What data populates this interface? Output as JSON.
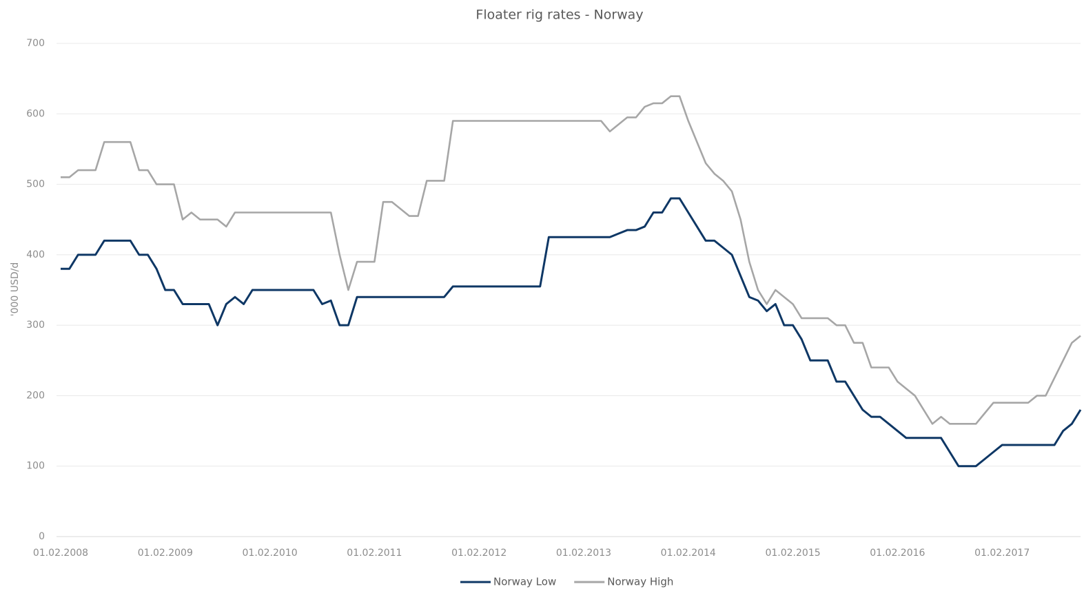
{
  "chart_data": {
    "type": "line",
    "title": "Floater rig rates - Norway",
    "y_label": "'000 USD/d",
    "categories": [
      "01.02.2008",
      null,
      null,
      null,
      null,
      null,
      null,
      null,
      null,
      null,
      null,
      null,
      "01.02.2009",
      null,
      null,
      null,
      null,
      null,
      null,
      null,
      null,
      null,
      null,
      null,
      "01.02.2010",
      null,
      null,
      null,
      null,
      null,
      null,
      null,
      null,
      null,
      null,
      null,
      "01.02.2011",
      null,
      null,
      null,
      null,
      null,
      null,
      null,
      null,
      null,
      null,
      null,
      "01.02.2012",
      null,
      null,
      null,
      null,
      null,
      null,
      null,
      null,
      null,
      null,
      null,
      "01.02.2013",
      null,
      null,
      null,
      null,
      null,
      null,
      null,
      null,
      null,
      null,
      null,
      "01.02.2014",
      null,
      null,
      null,
      null,
      null,
      null,
      null,
      null,
      null,
      null,
      null,
      "01.02.2015",
      null,
      null,
      null,
      null,
      null,
      null,
      null,
      null,
      null,
      null,
      null,
      "01.02.2016",
      null,
      null,
      null,
      null,
      null,
      null,
      null,
      null,
      null,
      null,
      null,
      "01.02.2017",
      null,
      null,
      null,
      null,
      null,
      null,
      null,
      null,
      null
    ],
    "series": [
      {
        "name": "Norway Low",
        "color": "#0e3765",
        "values": [
          380,
          380,
          400,
          400,
          400,
          420,
          420,
          420,
          420,
          400,
          400,
          380,
          350,
          350,
          330,
          330,
          330,
          330,
          300,
          330,
          340,
          330,
          350,
          350,
          350,
          350,
          350,
          350,
          350,
          350,
          330,
          335,
          300,
          300,
          340,
          340,
          340,
          340,
          340,
          340,
          340,
          340,
          340,
          340,
          340,
          355,
          355,
          355,
          355,
          355,
          355,
          355,
          355,
          355,
          355,
          355,
          425,
          425,
          425,
          425,
          425,
          425,
          425,
          425,
          430,
          435,
          435,
          440,
          460,
          460,
          480,
          480,
          460,
          440,
          420,
          420,
          410,
          400,
          370,
          340,
          335,
          320,
          330,
          300,
          300,
          280,
          250,
          250,
          250,
          220,
          220,
          200,
          180,
          170,
          170,
          160,
          150,
          140,
          140,
          140,
          140,
          140,
          120,
          100,
          100,
          100,
          110,
          120,
          130,
          130,
          130,
          130,
          130,
          130,
          130,
          150,
          160,
          180
        ]
      },
      {
        "name": "Norway High",
        "color": "#a6a6a6",
        "values": [
          510,
          510,
          520,
          520,
          520,
          560,
          560,
          560,
          560,
          520,
          520,
          500,
          500,
          500,
          450,
          460,
          450,
          450,
          450,
          440,
          460,
          460,
          460,
          460,
          460,
          460,
          460,
          460,
          460,
          460,
          460,
          460,
          400,
          350,
          390,
          390,
          390,
          475,
          475,
          465,
          455,
          455,
          505,
          505,
          505,
          590,
          590,
          590,
          590,
          590,
          590,
          590,
          590,
          590,
          590,
          590,
          590,
          590,
          590,
          590,
          590,
          590,
          590,
          575,
          585,
          595,
          595,
          610,
          615,
          615,
          625,
          625,
          590,
          560,
          530,
          515,
          505,
          490,
          450,
          390,
          350,
          330,
          350,
          340,
          330,
          310,
          310,
          310,
          310,
          300,
          300,
          275,
          275,
          240,
          240,
          240,
          220,
          210,
          200,
          180,
          160,
          170,
          160,
          160,
          160,
          160,
          175,
          190,
          190,
          190,
          190,
          190,
          200,
          200,
          225,
          250,
          275,
          285
        ]
      }
    ],
    "ylim": [
      0,
      700
    ],
    "yticks": [
      0,
      100,
      200,
      300,
      400,
      500,
      600,
      700
    ],
    "grid": true,
    "legend": "bottom"
  }
}
